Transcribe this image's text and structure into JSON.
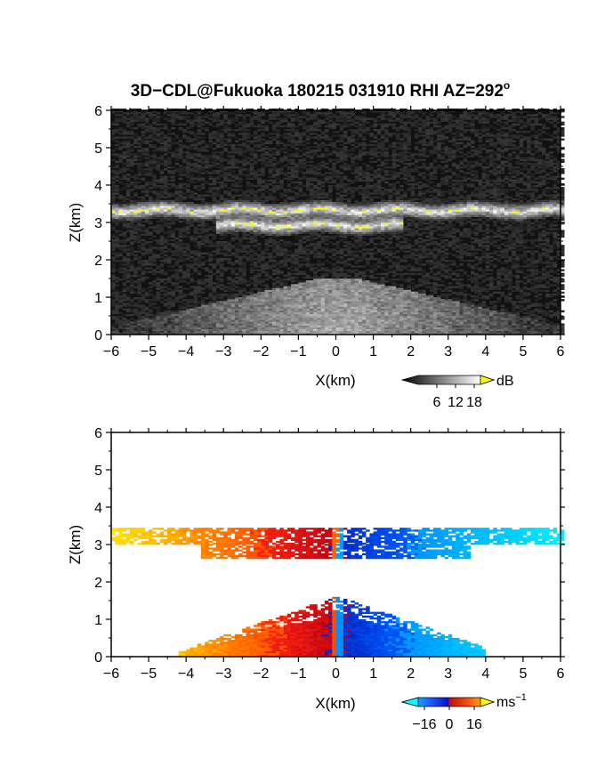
{
  "title": "3D−CDL@Fukuoka 180215 031910 RHI AZ=292",
  "title_degree": "o",
  "chart_data": [
    {
      "type": "heatmap",
      "panel": "top",
      "quantity": "backscatter intensity",
      "xlabel": "X(km)",
      "ylabel": "Z(km)",
      "xlim": [
        -6,
        6
      ],
      "ylim": [
        0,
        6
      ],
      "xticks": [
        "−6",
        "−5",
        "−4",
        "−3",
        "−2",
        "−1",
        "0",
        "1",
        "2",
        "3",
        "4",
        "5",
        "6"
      ],
      "yticks": [
        "0",
        "1",
        "2",
        "3",
        "4",
        "5",
        "6"
      ],
      "colorscale": "grayscale with yellow saturation",
      "colorbar": {
        "unit": "dB",
        "ticks": [
          "6",
          "12",
          "18"
        ],
        "range": [
          0,
          20
        ]
      },
      "layers": [
        {
          "z_center": 3.3,
          "x_range": [
            -6,
            6
          ],
          "thickness": 0.12,
          "peak_intensity": "saturated (>18)"
        },
        {
          "z_center": 2.9,
          "x_range": [
            -3.3,
            1.7
          ],
          "thickness": 0.12,
          "peak_intensity": "saturated (>18)"
        },
        {
          "z_center": 0.5,
          "x_range": [
            -5.5,
            5.5
          ],
          "profile": "fan-shaped boundary-layer echo",
          "max_height": 1.4
        }
      ]
    },
    {
      "type": "heatmap",
      "panel": "bottom",
      "quantity": "Doppler radial velocity",
      "xlabel": "X(km)",
      "ylabel": "Z(km)",
      "xlim": [
        -6,
        6
      ],
      "ylim": [
        0,
        6
      ],
      "xticks": [
        "−6",
        "−5",
        "−4",
        "−3",
        "−2",
        "−1",
        "0",
        "1",
        "2",
        "3",
        "4",
        "5",
        "6"
      ],
      "yticks": [
        "0",
        "1",
        "2",
        "3",
        "4",
        "5",
        "6"
      ],
      "colorscale": "cyan-blue-red-yellow diverging",
      "colorbar": {
        "unit": "ms",
        "unit_exponent": "−1",
        "ticks": [
          "−16",
          "0",
          "16"
        ],
        "range": [
          -20,
          20
        ]
      },
      "layers": [
        {
          "z_center": 3.2,
          "x_range": [
            -6,
            6
          ],
          "velocity_at_left_edge": 18,
          "velocity_near_zero_left": 10,
          "velocity_near_zero_right": -10,
          "velocity_at_right_edge": -18
        },
        {
          "z_center": 2.8,
          "x_range": [
            -3.6,
            3.6
          ],
          "velocity_left": 14,
          "velocity_right": -14
        },
        {
          "z_center": 0.6,
          "x_range": [
            -4.2,
            4.0
          ],
          "max_height": 1.5,
          "velocity_left": 14,
          "velocity_right": -14
        }
      ]
    }
  ]
}
